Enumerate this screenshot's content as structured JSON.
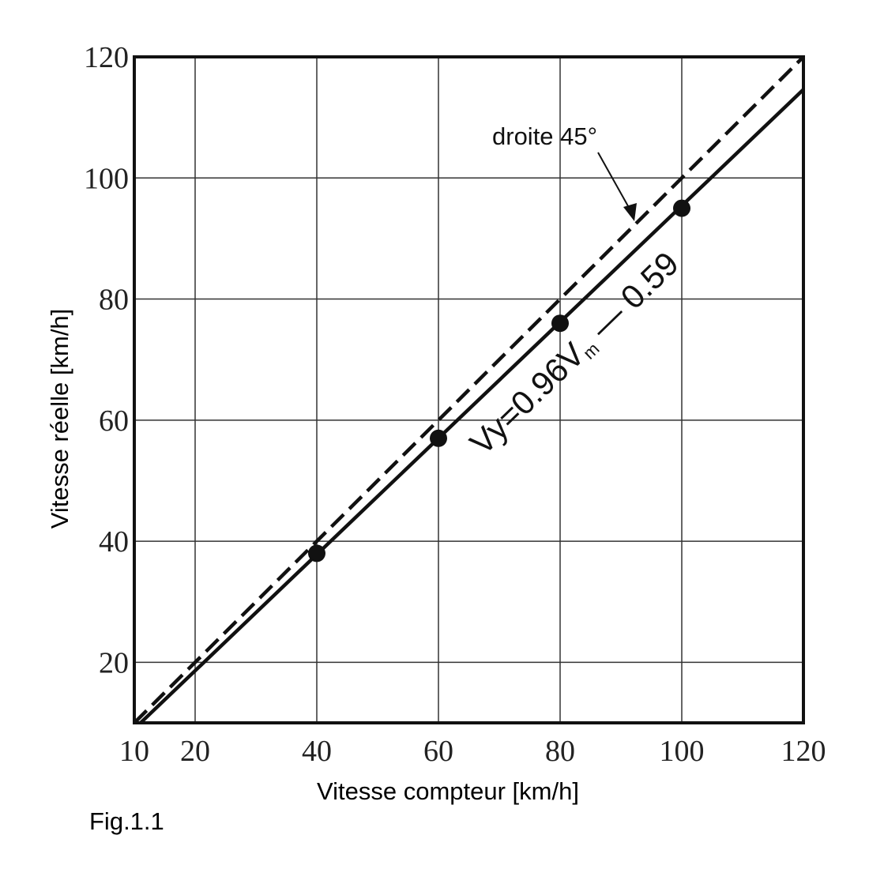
{
  "figure_label": "Fig.1.1",
  "chart_data": {
    "type": "scatter",
    "xlabel": "Vitesse compteur [km/h]",
    "ylabel": "Vitesse réelle [km/h]",
    "xlim": [
      10,
      120
    ],
    "ylim": [
      10,
      120
    ],
    "x_ticks": [
      10,
      20,
      40,
      60,
      80,
      100,
      120
    ],
    "y_ticks": [
      20,
      40,
      60,
      80,
      100,
      120
    ],
    "x_gridlines": [
      20,
      40,
      60,
      80,
      100
    ],
    "y_gridlines": [
      20,
      40,
      60,
      80,
      100
    ],
    "grid": true,
    "points": [
      {
        "x": 40,
        "y": 38
      },
      {
        "x": 60,
        "y": 57
      },
      {
        "x": 80,
        "y": 76
      },
      {
        "x": 100,
        "y": 95
      }
    ],
    "lines": [
      {
        "style": "dashed",
        "slope": 1,
        "intercept": 0,
        "x_range": [
          10,
          120
        ]
      },
      {
        "style": "solid",
        "slope": 0.96,
        "intercept": -0.59,
        "x_range": [
          10,
          120
        ]
      }
    ],
    "annotations": {
      "dashed_label": "droite 45°",
      "fit_main": "Vy=0.96V",
      "fit_sub": "m",
      "fit_tail": " — 0.59"
    },
    "colors": {
      "ink": "#111111",
      "grid": "#333333",
      "background": "#ffffff"
    }
  }
}
